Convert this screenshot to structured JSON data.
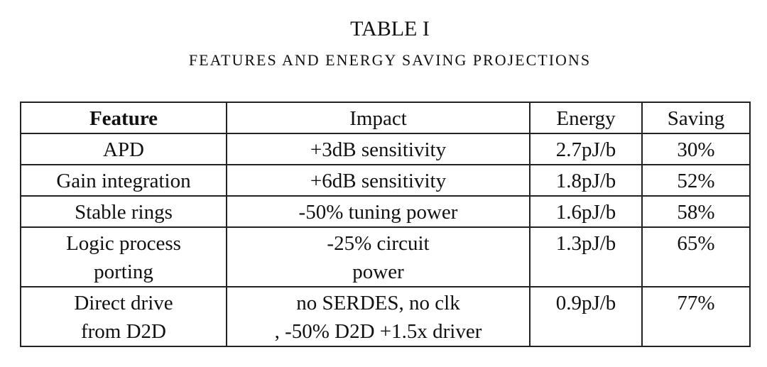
{
  "header": {
    "title": "TABLE I",
    "subtitle": "FEATURES AND ENERGY SAVING PROJECTIONS"
  },
  "table": {
    "columns": [
      "Feature",
      "Impact",
      "Energy",
      "Saving"
    ],
    "rows": [
      [
        "APD",
        "+3dB sensitivity",
        "2.7pJ/b",
        "30%"
      ],
      [
        "Gain integration",
        "+6dB sensitivity",
        "1.8pJ/b",
        "52%"
      ],
      [
        "Stable rings",
        "-50% tuning power",
        "1.6pJ/b",
        "58%"
      ],
      [
        "Logic process\nporting",
        "-25% circuit\npower",
        "1.3pJ/b",
        "65%"
      ],
      [
        "Direct drive\nfrom D2D",
        "no SERDES, no clk\n, -50% D2D +1.5x driver",
        "0.9pJ/b",
        "77%"
      ]
    ]
  }
}
